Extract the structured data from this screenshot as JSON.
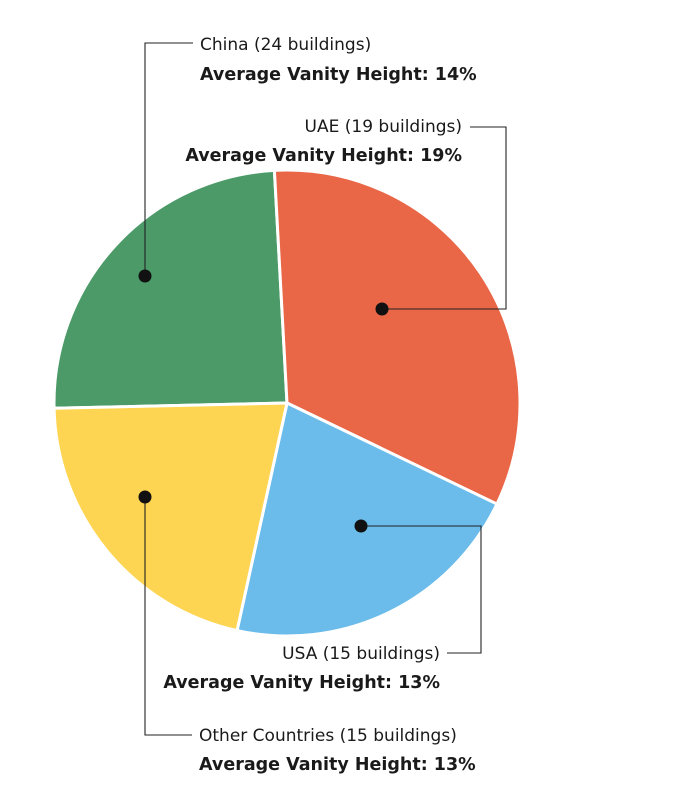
{
  "chart_data": {
    "type": "pie",
    "title": "",
    "series_label": "Average Vanity Height",
    "slices": [
      {
        "name": "China (24 buildings)",
        "value_text": "Average Vanity Height: 14%",
        "buildings": 24,
        "vanity_height_pct": 14,
        "share_of_pie": 0.245,
        "color": "#4B9A68"
      },
      {
        "name": "UAE (19 buildings)",
        "value_text": "Average Vanity Height: 19%",
        "buildings": 19,
        "vanity_height_pct": 19,
        "share_of_pie": 0.33,
        "color": "#E96646"
      },
      {
        "name": "USA (15 buildings)",
        "value_text": "Average Vanity Height: 13%",
        "buildings": 15,
        "vanity_height_pct": 13,
        "share_of_pie": 0.213,
        "color": "#6BBCEA"
      },
      {
        "name": "Other Countries (15 buildings)",
        "value_text": "Average Vanity Height: 13%",
        "buildings": 15,
        "vanity_height_pct": 13,
        "share_of_pie": 0.212,
        "color": "#FDD552"
      }
    ],
    "legend": "none",
    "labels": "callouts with leader lines"
  }
}
